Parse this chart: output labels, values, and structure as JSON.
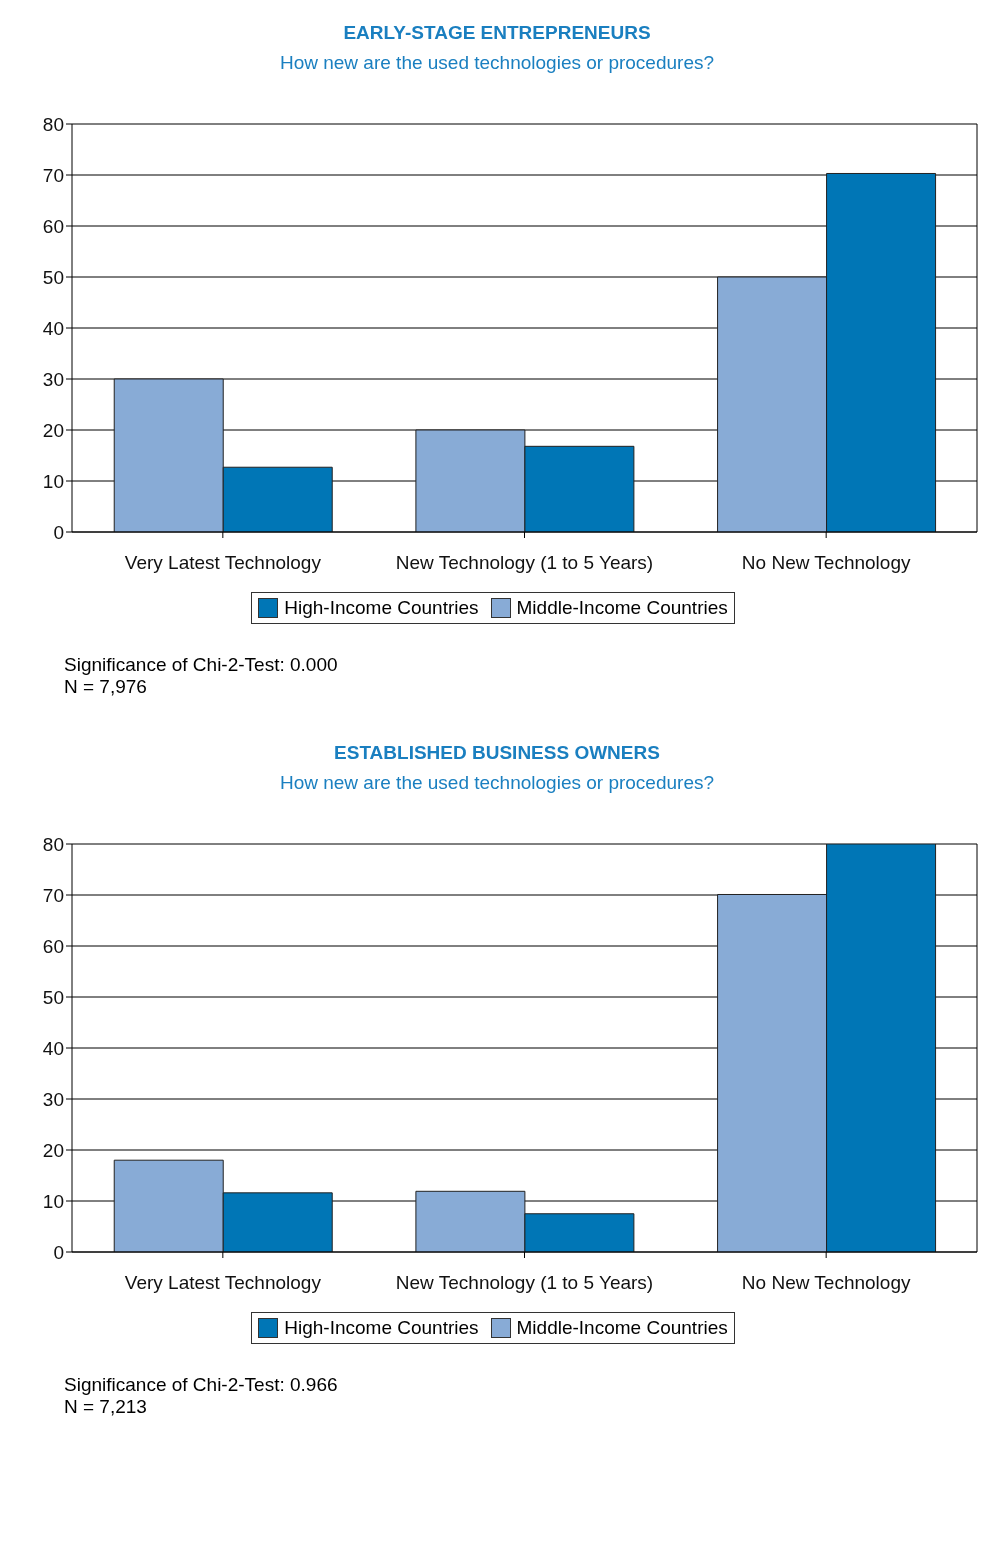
{
  "chart_data": [
    {
      "type": "bar",
      "title": "EARLY-STAGE ENTREPRENEURS",
      "subtitle": "How new are the used technologies or procedures?",
      "categories": [
        "Very Latest Technology",
        "New Technology (1 to 5 Years)",
        "No New Technology"
      ],
      "series": [
        {
          "name": "Middle-Income Countries",
          "color": "#88abd6",
          "values": [
            30,
            20,
            50
          ]
        },
        {
          "name": "High-Income Countries",
          "color": "#0076b6",
          "values": [
            12.7,
            16.8,
            70.3
          ]
        }
      ],
      "ylim": [
        0,
        80
      ],
      "yticks": [
        0,
        10,
        20,
        30,
        40,
        50,
        60,
        70,
        80
      ],
      "grid": "y",
      "legend": "bottom",
      "annotations": [
        "Significance of Chi-2-Test: 0.000",
        "N = 7,976"
      ]
    },
    {
      "type": "bar",
      "title": "ESTABLISHED BUSINESS OWNERS",
      "subtitle": "How new are the used technologies or procedures?",
      "categories": [
        "Very Latest Technology",
        "New Technology (1 to 5 Years)",
        "No New Technology"
      ],
      "series": [
        {
          "name": "Middle-Income Countries",
          "color": "#88abd6",
          "values": [
            18,
            11.9,
            70.1
          ]
        },
        {
          "name": "High-Income Countries",
          "color": "#0076b6",
          "values": [
            11.6,
            7.5,
            80
          ]
        }
      ],
      "ylim": [
        0,
        80
      ],
      "yticks": [
        0,
        10,
        20,
        30,
        40,
        50,
        60,
        70,
        80
      ],
      "grid": "y",
      "legend": "bottom",
      "annotations": [
        "Significance of Chi-2-Test: 0.966",
        "N = 7,213"
      ]
    }
  ]
}
